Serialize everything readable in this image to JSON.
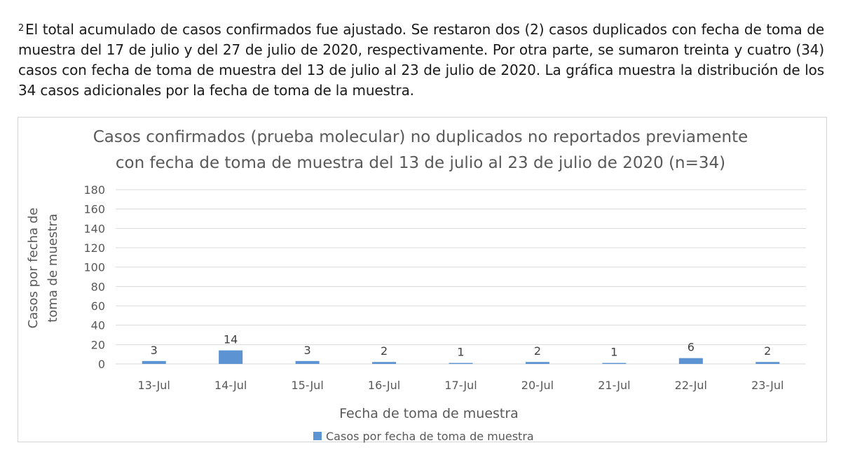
{
  "note": {
    "superscript": "2",
    "text": "El total acumulado de casos confirmados fue ajustado. Se restaron dos (2) casos duplicados con fecha de toma de muestra del 17 de julio y del 27 de julio de 2020, respectivamente. Por otra parte, se sumaron treinta y cuatro (34) casos con fecha de toma de muestra del 13 de julio al 23 de julio de 2020. La gráfica muestra la distribución de los 34 casos adicionales por la fecha de toma de la muestra."
  },
  "chart_data": {
    "type": "bar",
    "title_lines": [
      "Casos confirmados (prueba molecular) no duplicados no reportados previamente",
      "con fecha de toma de muestra del 13 de julio al 23 de julio de 2020 (n=34)"
    ],
    "ylabel_lines": [
      "Casos por fecha de",
      "toma de muestra"
    ],
    "xlabel": "Fecha de toma de muestra",
    "categories": [
      "13-Jul",
      "14-Jul",
      "15-Jul",
      "16-Jul",
      "17-Jul",
      "20-Jul",
      "21-Jul",
      "22-Jul",
      "23-Jul"
    ],
    "series": [
      {
        "name": "Casos por fecha de toma de muestra",
        "values": [
          3,
          14,
          3,
          2,
          1,
          2,
          1,
          6,
          2
        ],
        "color": "#5b93d3"
      }
    ],
    "ylim": [
      0,
      180
    ],
    "yticks": [
      0,
      20,
      40,
      60,
      80,
      100,
      120,
      140,
      160,
      180
    ],
    "grid": true,
    "data_labels": true,
    "legend_position": "bottom"
  }
}
